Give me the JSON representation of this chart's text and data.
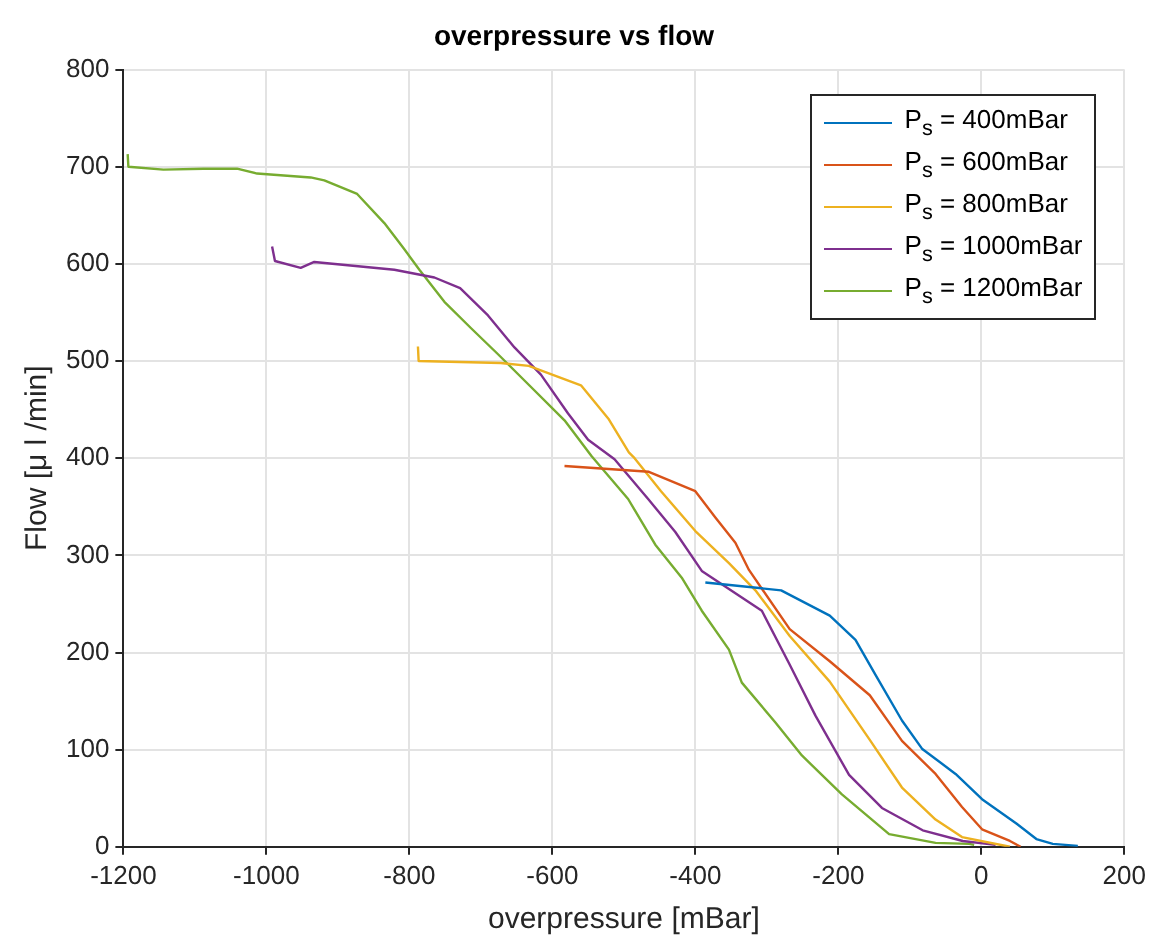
{
  "chart_data": {
    "type": "line",
    "title": "overpressure vs flow",
    "xlabel": "overpressure [mBar]",
    "ylabel": "Flow [μ l /min]",
    "xlim": [
      -1200,
      200
    ],
    "xticks": [
      -1200,
      -1000,
      -800,
      -600,
      -400,
      -200,
      0,
      200
    ],
    "ylim": [
      0,
      800
    ],
    "yticks": [
      0,
      100,
      200,
      300,
      400,
      500,
      600,
      700,
      800
    ],
    "grid": true,
    "legend": "top right",
    "marker": "none",
    "line_style": "solid",
    "series": [
      {
        "name": "P$_{s}$ = 400mBar",
        "color": "#0072bd",
        "x": [
          -386,
          -280,
          -212,
          -176,
          -148,
          -111,
          -83,
          -36,
          1,
          49,
          77,
          100,
          135
        ],
        "values": [
          272,
          264,
          238,
          213,
          177,
          130,
          101,
          75,
          49,
          24,
          8,
          3,
          1
        ]
      },
      {
        "name": "P$_{s}$ = 600mBar",
        "color": "#d95319",
        "x": [
          -583,
          -465,
          -400,
          -372,
          -344,
          -325,
          -268,
          -212,
          -156,
          -111,
          -64,
          -27,
          1,
          40,
          55
        ],
        "values": [
          392,
          386,
          366,
          339,
          313,
          285,
          224,
          191,
          156,
          109,
          75,
          41,
          18,
          6,
          0
        ]
      },
      {
        "name": "P$_{s}$ = 800mBar",
        "color": "#edb120",
        "x": [
          -788,
          -787,
          -672,
          -633,
          -560,
          -521,
          -493,
          -485,
          -448,
          -400,
          -353,
          -316,
          -268,
          -212,
          -156,
          -111,
          -64,
          -27,
          40
        ],
        "values": [
          515,
          500,
          498,
          495,
          475,
          440,
          406,
          400,
          366,
          325,
          292,
          264,
          217,
          170,
          110,
          61,
          28,
          10,
          0
        ]
      },
      {
        "name": "P$_{s}$ = 1000mBar",
        "color": "#7e2f8e",
        "x": [
          -992,
          -988,
          -952,
          -933,
          -821,
          -765,
          -729,
          -690,
          -653,
          -616,
          -578,
          -550,
          -513,
          -466,
          -428,
          -391,
          -307,
          -269,
          -232,
          -185,
          -139,
          -82,
          -26,
          20
        ],
        "values": [
          618,
          603,
          596,
          602,
          594,
          586,
          575,
          547,
          514,
          486,
          446,
          419,
          399,
          358,
          324,
          284,
          243,
          189,
          135,
          74,
          40,
          17,
          6,
          2
        ]
      },
      {
        "name": "P$_{s}$ = 1200mBar",
        "color": "#77ac30",
        "x": [
          -1194,
          -1193,
          -1144,
          -1088,
          -1041,
          -1013,
          -938,
          -919,
          -873,
          -835,
          -807,
          -786,
          -751,
          -714,
          -676,
          -639,
          -583,
          -545,
          -494,
          -456,
          -419,
          -391,
          -353,
          -335,
          -288,
          -251,
          -195,
          -129,
          -64,
          -17,
          -10
        ],
        "values": [
          713,
          700,
          697,
          698,
          698,
          693,
          689,
          686,
          672,
          642,
          615,
          594,
          561,
          534,
          507,
          480,
          439,
          402,
          358,
          311,
          277,
          243,
          203,
          169,
          128,
          94,
          54,
          13,
          4,
          3,
          2
        ]
      }
    ]
  }
}
